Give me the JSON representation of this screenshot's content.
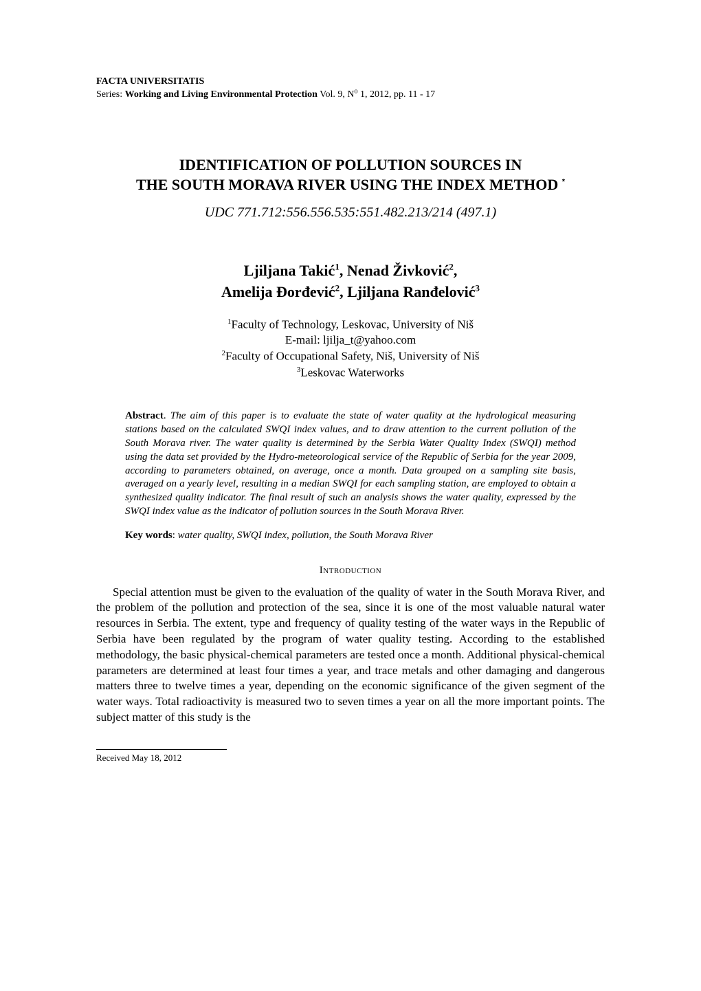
{
  "running_head": {
    "journal": "FACTA UNIVERSITATIS",
    "series_prefix": "Series: ",
    "series_name": "Working and Living Environmental Protection",
    "series_tail_pre": " Vol. 9, N",
    "series_tail_sup": "o",
    "series_tail_post": " 1, 2012, pp. 11 - 17"
  },
  "title": {
    "line1": "IDENTIFICATION OF POLLUTION SOURCES IN",
    "line2": "THE SOUTH MORAVA RIVER USING THE INDEX METHOD"
  },
  "udc": "UDC 771.712:556.556.535:551.482.213/214 (497.1)",
  "authors": {
    "a1_name": "Ljiljana Takić",
    "a1_sup": "1",
    "sep1": ", ",
    "a2_name": "Nenad Živković",
    "a2_sup": "2",
    "sep2": ",",
    "a3_name": "Amelija Đorđević",
    "a3_sup": "2",
    "sep3": ", ",
    "a4_name": "Ljiljana Ranđelović",
    "a4_sup": "3"
  },
  "affiliations": {
    "l1_sup": "1",
    "l1_text": "Faculty of Technology, Leskovac, University of Niš",
    "l2_text": "E-mail: ljilja_t@yahoo.com",
    "l3_sup": "2",
    "l3_text": "Faculty of Occupational Safety, Niš, University of Niš",
    "l4_sup": "3",
    "l4_text": "Leskovac Waterworks"
  },
  "abstract": {
    "label": "Abstract",
    "sep": ". ",
    "body": "The aim of this paper is to evaluate the state of water quality at the hydrological measuring stations based on the calculated SWQI index values, and to draw attention to the current pollution of the South Morava river. The water quality is determined by the Serbia Water Quality Index (SWQI) method using the data set provided by the Hydro-meteorological service of the Republic of Serbia for the year 2009, according to parameters obtained, on average, once a month. Data grouped on a sampling site basis, averaged on a yearly level, resulting in a median SWQI for each sampling station, are employed to obtain a synthesized quality indicator. The final result of such an analysis shows the water quality, expressed by the SWQI index value as the indicator of pollution sources in the South Morava River."
  },
  "keywords": {
    "label": "Key words",
    "sep": ":  ",
    "body": "water quality, SWQI index, pollution, the South Morava River"
  },
  "section_heading": "Introduction",
  "body_para": "Special attention must be given to the evaluation of the quality of water in the South Morava River, and the problem of the pollution and protection of the sea, since it is one of the most valuable natural water resources in Serbia. The extent, type and frequency of quality testing of the water ways in the Republic of Serbia have been regulated by the program of water quality testing. According to the established methodology, the basic physical-chemical parameters are tested once a month. Additional physical-chemical parameters are determined at least four times a year, and trace metals and other damaging and dangerous matters three to twelve times a year, depending on the economic significance of the given segment of the water ways. Total radioactivity is measured two to seven times a year on all the more important points. The subject matter of this study is the",
  "footnote": "Received May 18, 2012",
  "star": "*"
}
